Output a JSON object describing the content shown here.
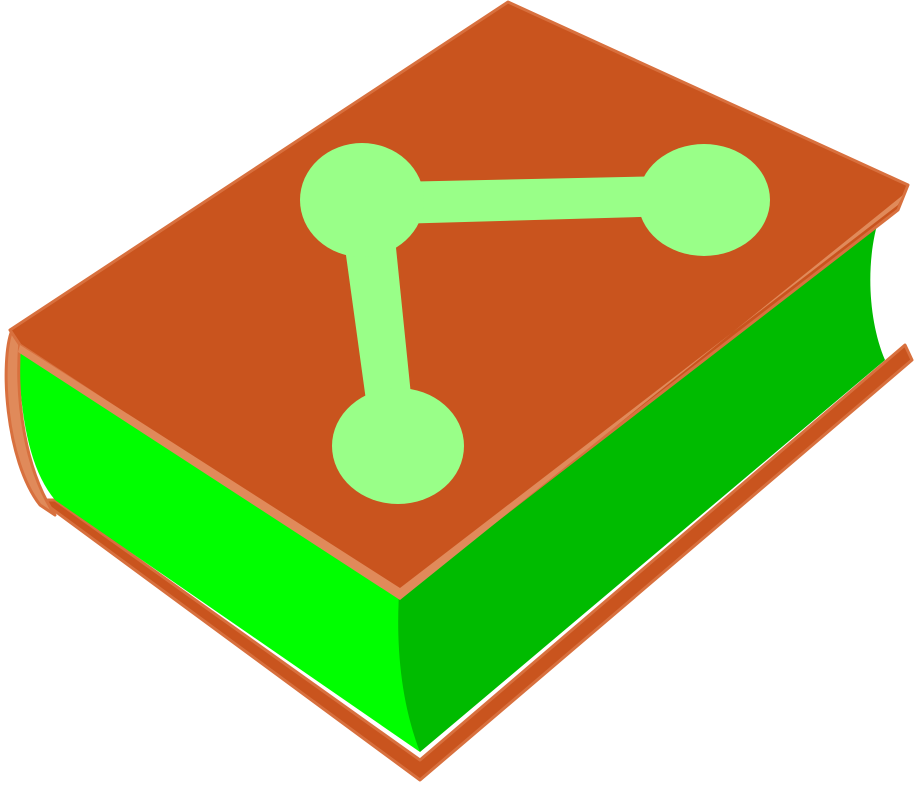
{
  "icon": {
    "name": "graph-book-icon",
    "colors": {
      "cover": "#c9541e",
      "cover_edge": "#d8703e",
      "cover_highlight": "#e08a5a",
      "pages_front": "#00ff00",
      "pages_side": "#00bb00",
      "graph": "#99ff88"
    }
  }
}
